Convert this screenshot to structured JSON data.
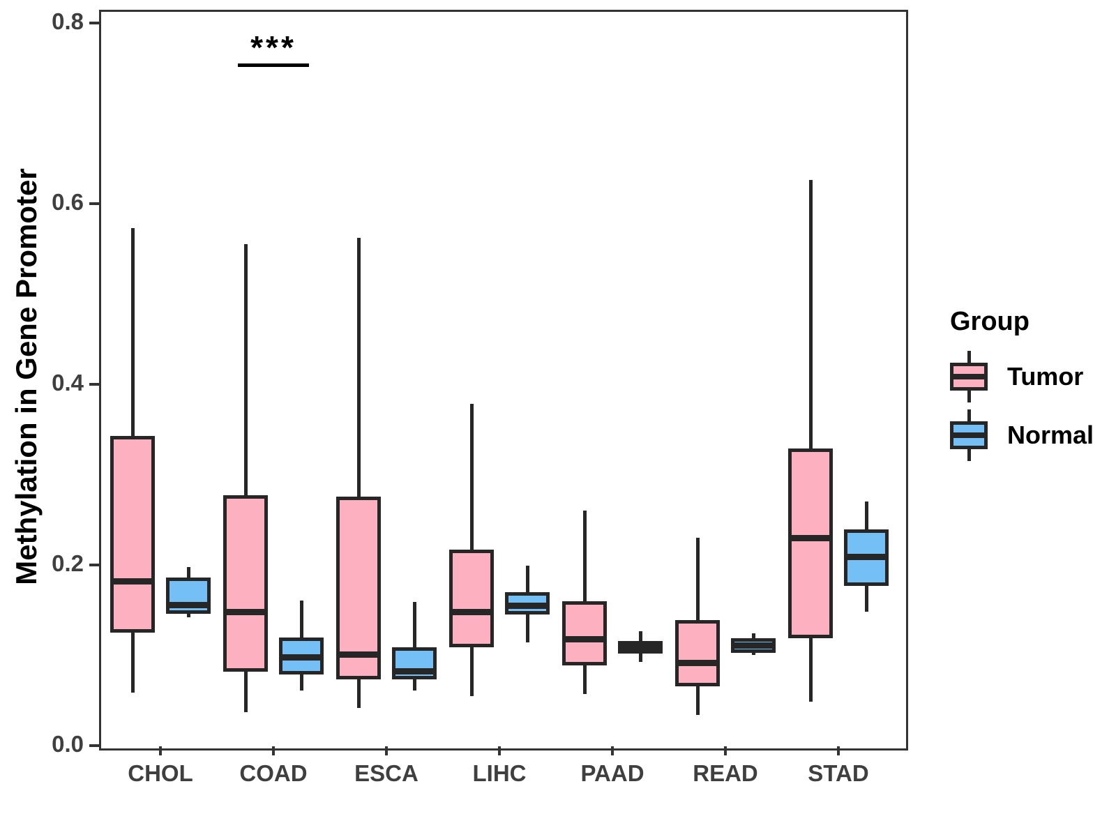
{
  "chart_data": {
    "type": "boxplot",
    "title": "",
    "xlabel": "",
    "ylabel": "Methylation in Gene Promoter",
    "ylim": [
      0.0,
      0.8
    ],
    "yticks": [
      {
        "label": "0.0",
        "value": 0.0
      },
      {
        "label": "0.2",
        "value": 0.2
      },
      {
        "label": "0.4",
        "value": 0.4
      },
      {
        "label": "0.6",
        "value": 0.6
      },
      {
        "label": "0.8",
        "value": 0.8
      }
    ],
    "categories": [
      "CHOL",
      "COAD",
      "ESCA",
      "LIHC",
      "PAAD",
      "READ",
      "STAD"
    ],
    "series": [
      {
        "name": "Tumor",
        "color": "#FCB0C0",
        "boxes": [
          {
            "low": 0.059,
            "q1": 0.125,
            "median": 0.182,
            "q3": 0.343,
            "high": 0.573
          },
          {
            "low": 0.037,
            "q1": 0.082,
            "median": 0.148,
            "q3": 0.277,
            "high": 0.555
          },
          {
            "low": 0.042,
            "q1": 0.073,
            "median": 0.101,
            "q3": 0.276,
            "high": 0.562
          },
          {
            "low": 0.055,
            "q1": 0.109,
            "median": 0.148,
            "q3": 0.217,
            "high": 0.378
          },
          {
            "low": 0.057,
            "q1": 0.089,
            "median": 0.118,
            "q3": 0.16,
            "high": 0.26
          },
          {
            "low": 0.034,
            "q1": 0.066,
            "median": 0.092,
            "q3": 0.139,
            "high": 0.23
          },
          {
            "low": 0.049,
            "q1": 0.119,
            "median": 0.23,
            "q3": 0.329,
            "high": 0.626
          }
        ]
      },
      {
        "name": "Normal",
        "color": "#74BFF5",
        "boxes": [
          {
            "low": 0.142,
            "q1": 0.146,
            "median": 0.156,
            "q3": 0.186,
            "high": 0.198
          },
          {
            "low": 0.061,
            "q1": 0.079,
            "median": 0.098,
            "q3": 0.12,
            "high": 0.161
          },
          {
            "low": 0.061,
            "q1": 0.073,
            "median": 0.083,
            "q3": 0.109,
            "high": 0.159
          },
          {
            "low": 0.114,
            "q1": 0.145,
            "median": 0.155,
            "q3": 0.17,
            "high": 0.199
          },
          {
            "low": 0.093,
            "q1": 0.102,
            "median": 0.11,
            "q3": 0.116,
            "high": 0.127
          },
          {
            "low": 0.1,
            "q1": 0.103,
            "median": 0.111,
            "q3": 0.119,
            "high": 0.124
          },
          {
            "low": 0.148,
            "q1": 0.177,
            "median": 0.209,
            "q3": 0.239,
            "high": 0.27
          }
        ]
      }
    ],
    "annotation": {
      "label": "***",
      "category": "COAD",
      "y_line": 0.754
    },
    "legend": {
      "title": "Group",
      "position": "right"
    },
    "grid": false
  }
}
